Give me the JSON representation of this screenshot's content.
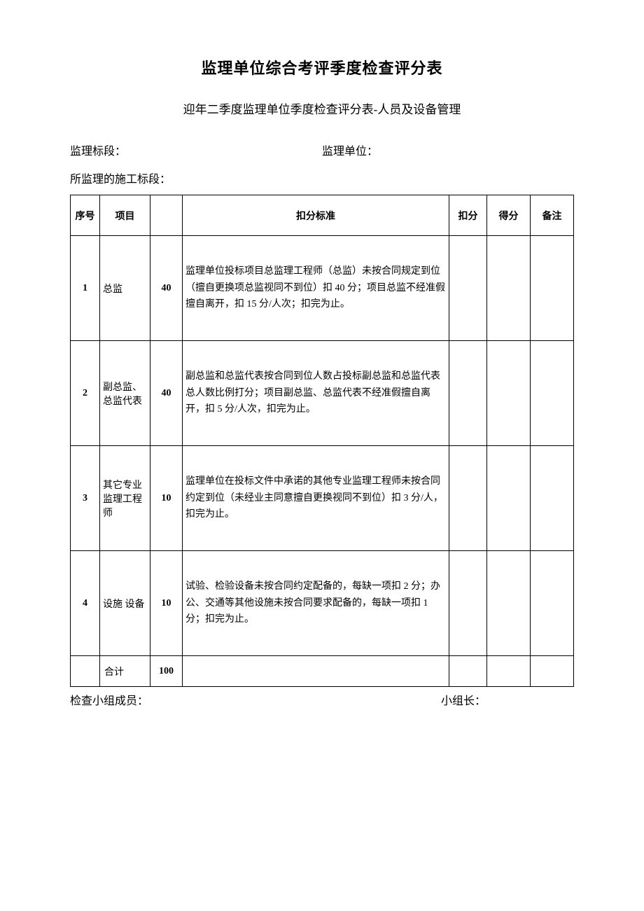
{
  "document": {
    "main_title": "监理单位综合考评季度检查评分表",
    "sub_title": "迎年二季度监理单位季度检查评分表-人员及设备管理",
    "form_fields": {
      "section_label": "监理标段：",
      "unit_label": "监理单位：",
      "construction_label": "所监理的施工标段：",
      "section_value": "",
      "unit_value": "",
      "construction_value": ""
    },
    "table": {
      "headers": {
        "seq": "序号",
        "item": "项目",
        "weight": "",
        "standard": "扣分标准",
        "deduct": "扣分",
        "score": "得分",
        "remark": "备注"
      },
      "rows": [
        {
          "seq": "1",
          "item": "总监",
          "weight": "40",
          "standard": "监理单位投标项目总监理工程师（总监）未按合同规定到位（擅自更换项总监视同不到位）扣 40 分；项目总监不经准假擅自离开，扣 15 分/人次；扣完为止。",
          "deduct": "",
          "score": "",
          "remark": ""
        },
        {
          "seq": "2",
          "item": "副总监、总监代表",
          "weight": "40",
          "standard": "副总监和总监代表按合同到位人数占投标副总监和总监代表总人数比例打分；项目副总监、总监代表不经准假擅自离开，扣 5 分/人次，扣完为止。",
          "deduct": "",
          "score": "",
          "remark": ""
        },
        {
          "seq": "3",
          "item": "其它专业监理工程师",
          "weight": "10",
          "standard": "监理单位在投标文件中承诺的其他专业监理工程师未按合同约定到位（未经业主同意擅自更换视同不到位）扣 3 分/人，扣完为止。",
          "deduct": "",
          "score": "",
          "remark": ""
        },
        {
          "seq": "4",
          "item": "设施\n设备",
          "weight": "10",
          "standard": "试验、检验设备未按合同约定配备的，每缺一项扣 2 分；办公、交通等其他设施未按合同要求配备的，每缺一项扣 1 分；扣完为止。",
          "deduct": "",
          "score": "",
          "remark": ""
        }
      ],
      "total_row": {
        "seq": "",
        "item": "合计",
        "weight": "100",
        "standard": "",
        "deduct": "",
        "score": "",
        "remark": ""
      }
    },
    "footer": {
      "members_label": "检查小组成员：",
      "leader_label": "小组长：",
      "members_value": "",
      "leader_value": ""
    }
  },
  "style": {
    "page_bg": "#ffffff",
    "text_color": "#000000",
    "border_color": "#000000",
    "main_title_fontsize": 22,
    "sub_title_fontsize": 17,
    "body_fontsize": 16,
    "table_fontsize": 14,
    "font_family": "SimSun"
  }
}
